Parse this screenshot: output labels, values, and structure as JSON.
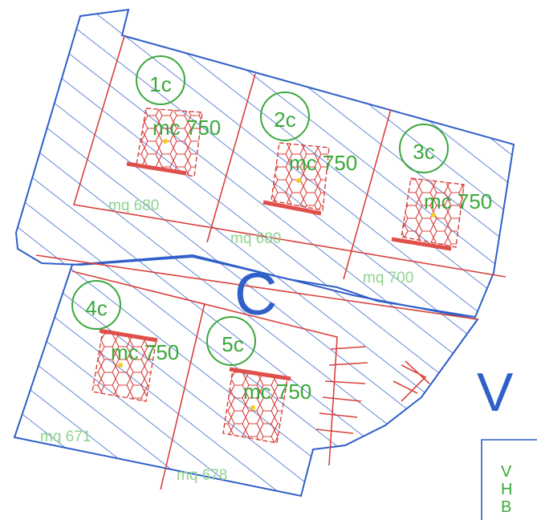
{
  "block_letter": "C",
  "side_letter": "V",
  "legend_lines": [
    "V",
    "H",
    "B"
  ],
  "colors": {
    "outline": "#2f5fc8",
    "subdivision": "#d8413c",
    "label": "#3aa83a",
    "area_text": "#8fd48f",
    "hex": "#d8413c",
    "center_dot": "#f0d020"
  },
  "lots": [
    {
      "id": "1c",
      "mc": "mc  750",
      "mq": "mq 680"
    },
    {
      "id": "2c",
      "mc": "mc  750",
      "mq": "mq 680"
    },
    {
      "id": "3c",
      "mc": "mc  750",
      "mq": "mq 700"
    },
    {
      "id": "4c",
      "mc": "mc  750",
      "mq": "mq 671"
    },
    {
      "id": "5c",
      "mc": "mc  750",
      "mq": "mq 678"
    }
  ]
}
